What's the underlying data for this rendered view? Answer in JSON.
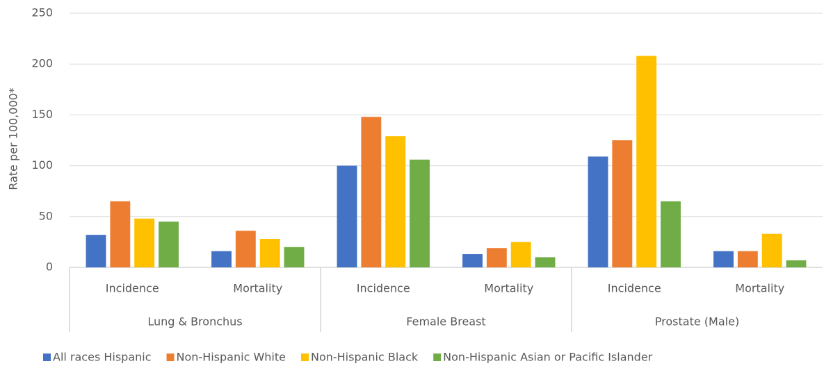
{
  "chart_data": {
    "type": "bar",
    "y_label": "Rate per 100,000*",
    "categories": [
      "Incidence",
      "Mortality",
      "Incidence",
      "Mortality",
      "Incidence",
      "Mortality"
    ],
    "groups": [
      "Lung & Bronchus",
      "Female Breast",
      "Prostate (Male)"
    ],
    "series": [
      {
        "name": "All races Hispanic",
        "color": "#4472c4",
        "values": [
          32,
          16,
          100,
          13,
          109,
          16
        ]
      },
      {
        "name": "Non-Hispanic White",
        "color": "#ed7d31",
        "values": [
          65,
          36,
          148,
          19,
          125,
          16
        ]
      },
      {
        "name": "Non-Hispanic Black",
        "color": "#ffc000",
        "values": [
          48,
          28,
          129,
          25,
          208,
          33
        ]
      },
      {
        "name": "Non-Hispanic Asian or Pacific Islander",
        "color": "#70ad47",
        "values": [
          45,
          20,
          106,
          10,
          65,
          7
        ]
      }
    ],
    "ylim": [
      0,
      250
    ],
    "yticks": [
      0,
      50,
      100,
      150,
      200,
      250
    ],
    "grid": true,
    "legend": "bottom"
  }
}
